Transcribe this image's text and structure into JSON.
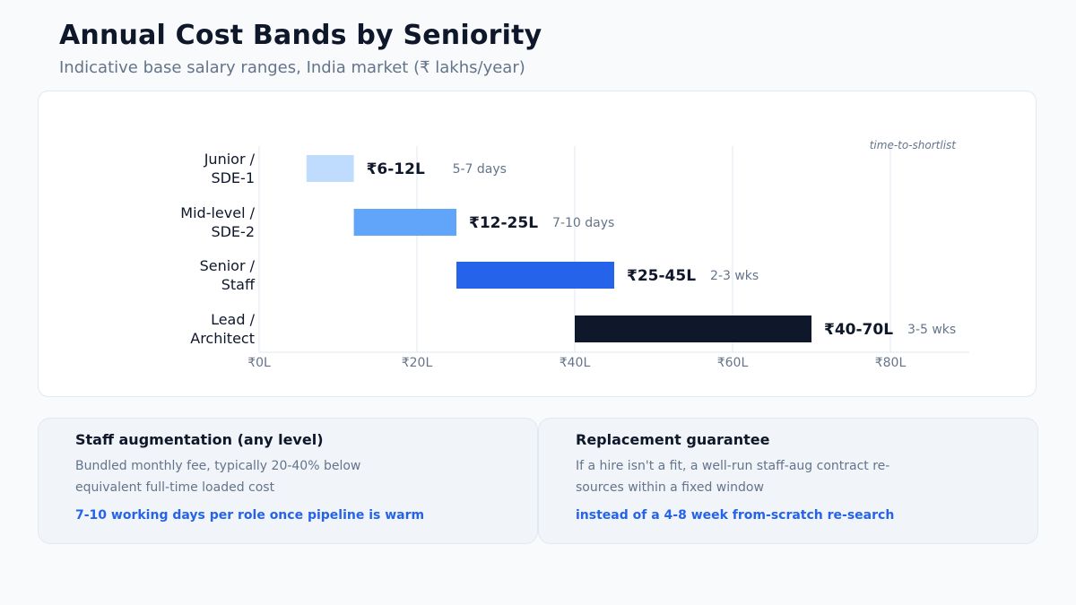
{
  "header": {
    "title": "Annual Cost Bands by Seniority",
    "subtitle": "Indicative base salary ranges, India market (₹ lakhs/year)"
  },
  "chart_data": {
    "type": "bar",
    "orientation": "horizontal-range",
    "title": "",
    "xlabel": "",
    "ylabel": "",
    "xlim": [
      0,
      90
    ],
    "x_ticks": [
      0,
      20,
      40,
      60,
      80
    ],
    "x_tick_labels": [
      "₹0L",
      "₹20L",
      "₹40L",
      "₹60L",
      "₹80L"
    ],
    "grid": "vertical",
    "annotation_header": "time-to-shortlist",
    "categories": [
      [
        "Junior /",
        "SDE-1"
      ],
      [
        "Mid-level /",
        "SDE-2"
      ],
      [
        "Senior /",
        "Staff"
      ],
      [
        "Lead /",
        "Architect"
      ]
    ],
    "ranges": [
      {
        "low": 6,
        "high": 12,
        "label": "₹6-12L",
        "note": "5-7 days",
        "color": "#bfdbfe"
      },
      {
        "low": 12,
        "high": 25,
        "label": "₹12-25L",
        "note": "7-10 days",
        "color": "#60a5fa"
      },
      {
        "low": 25,
        "high": 45,
        "label": "₹25-45L",
        "note": "2-3 wks",
        "color": "#2563eb"
      },
      {
        "low": 40,
        "high": 70,
        "label": "₹40-70L",
        "note": "3-5 wks",
        "color": "#0f172a"
      }
    ]
  },
  "cards": [
    {
      "title": "Staff augmentation (any level)",
      "description": "Bundled monthly fee, typically 20-40% below equivalent full-time loaded cost",
      "highlight": "7-10 working days per role once pipeline is warm"
    },
    {
      "title": "Replacement guarantee",
      "description": "If a hire isn't a fit, a well-run staff-aug contract re-sources within a fixed window",
      "highlight": "instead of a 4-8 week from-scratch re-search"
    }
  ],
  "colors": {
    "accent": "#2563eb",
    "text_dark": "#0f172a",
    "text_muted": "#64748b",
    "grid": "#e2e8f0"
  }
}
